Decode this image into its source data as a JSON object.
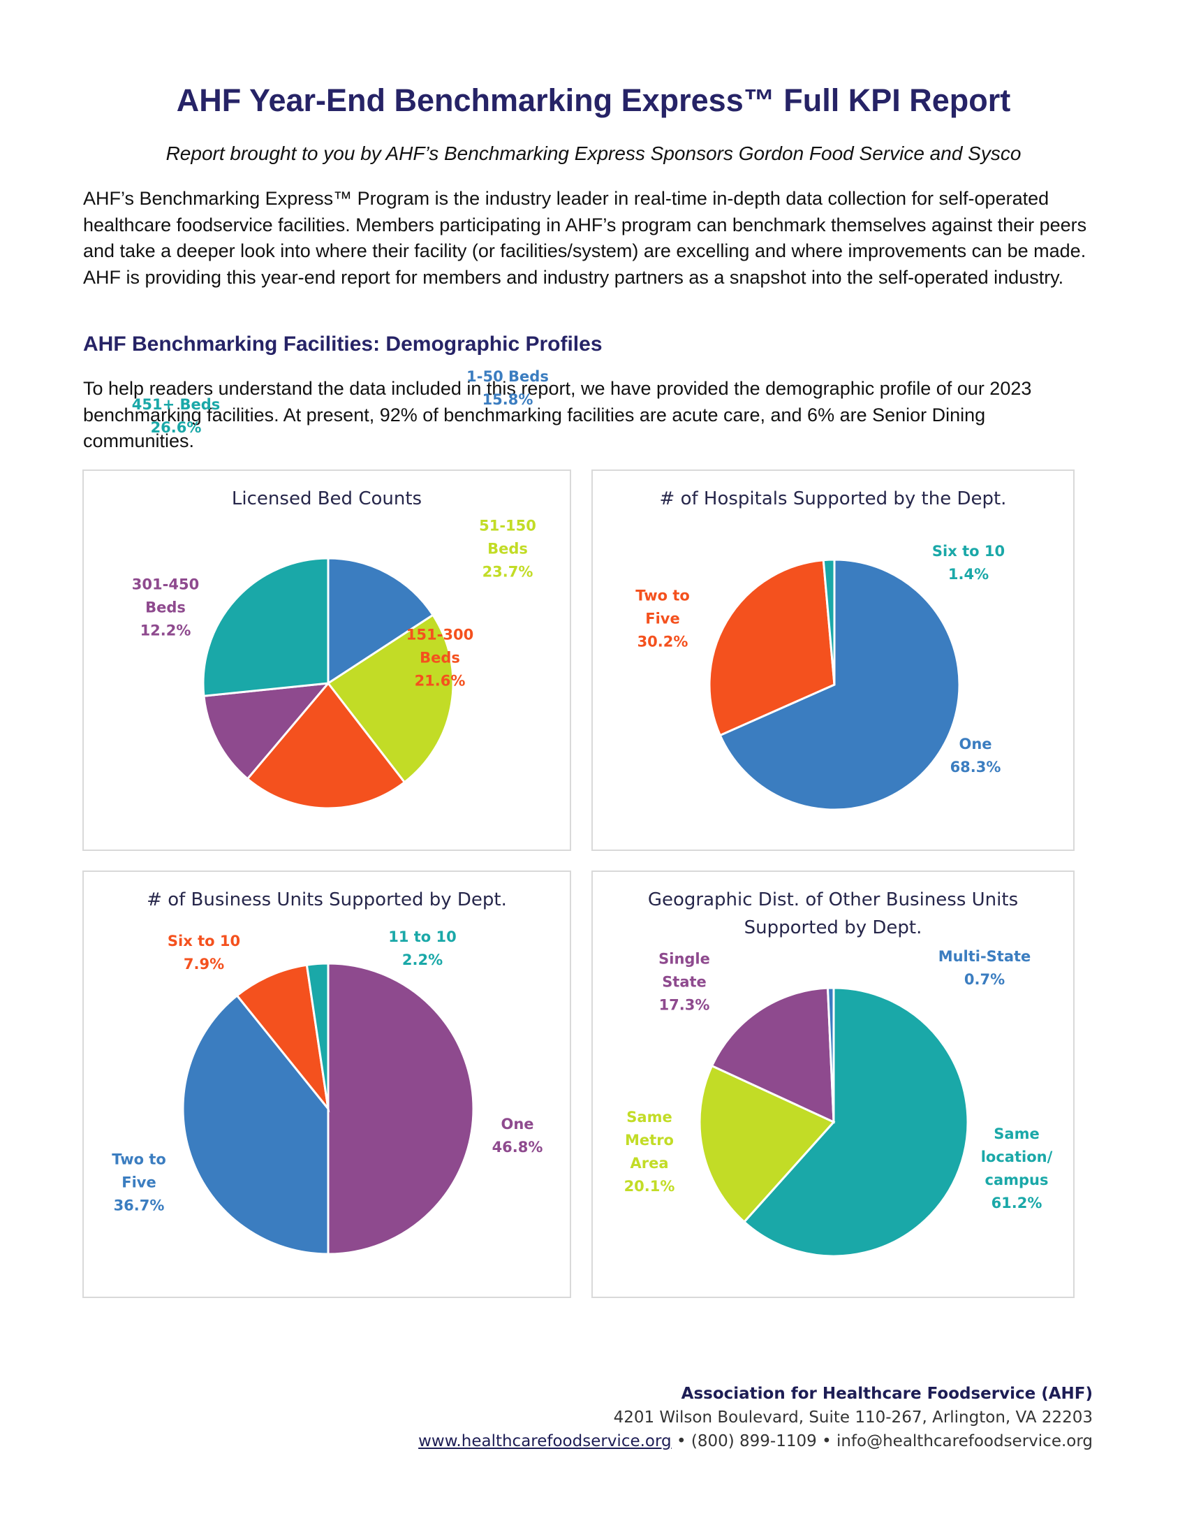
{
  "header": {
    "title": "AHF Year-End Benchmarking Express™ Full KPI Report",
    "subtitle": "Report brought to you by AHF’s Benchmarking Express Sponsors Gordon Food Service and Sysco"
  },
  "intro": "AHF’s Benchmarking Express™ Program is the industry leader in real-time in-depth data collection for self-operated healthcare foodservice facilities. Members participating in AHF’s program can benchmark themselves against their peers and take a deeper look into where their facility (or facilities/system) are excelling and where improvements can be made. AHF is providing this year-end report for members and industry partners as a snapshot into the self-operated industry.",
  "section": {
    "title": "AHF Benchmarking Facilities: Demographic Profiles",
    "text": "To help readers understand the data included in this report, we have provided the demographic profile of our 2023 benchmarking facilities. At present, 92% of benchmarking facilities are acute care, and 6% are Senior Dining communities."
  },
  "chart_data": [
    {
      "type": "pie",
      "title": "Licensed Bed Counts",
      "categories": [
        "1-50 Beds",
        "51-150 Beds",
        "151-300 Beds",
        "301-450 Beds",
        "451+ Beds"
      ],
      "values": [
        15.8,
        23.7,
        21.6,
        12.2,
        26.6
      ],
      "value_labels": [
        "15.8%",
        "23.7%",
        "21.6%",
        "12.2%",
        "26.6%"
      ],
      "colors": [
        "#3b7dc0",
        "#c2dc26",
        "#f4511e",
        "#8e4a8e",
        "#1aa8a8"
      ]
    },
    {
      "type": "pie",
      "title": "# of Hospitals Supported by the Dept.",
      "categories": [
        "One",
        "Two to Five",
        "Six to 10"
      ],
      "values": [
        68.3,
        30.2,
        1.4
      ],
      "value_labels": [
        "68.3%",
        "30.2%",
        "1.4%"
      ],
      "colors": [
        "#3b7dc0",
        "#f4511e",
        "#1aa8a8"
      ]
    },
    {
      "type": "pie",
      "title": "# of Business Units Supported by Dept.",
      "categories": [
        "One",
        "Two to Five",
        "Six to 10",
        "11 to 10"
      ],
      "values": [
        46.8,
        36.7,
        7.9,
        2.2
      ],
      "value_labels": [
        "46.8%",
        "36.7%",
        "7.9%",
        "2.2%"
      ],
      "colors": [
        "#8e4a8e",
        "#3b7dc0",
        "#f4511e",
        "#1aa8a8"
      ]
    },
    {
      "type": "pie",
      "title": "Geographic Dist. of Other Business Units Supported by Dept.",
      "categories": [
        "Same location/ campus",
        "Same Metro Area",
        "Single State",
        "Multi-State"
      ],
      "values": [
        61.2,
        20.1,
        17.3,
        0.7
      ],
      "value_labels": [
        "61.2%",
        "20.1%",
        "17.3%",
        "0.7%"
      ],
      "colors": [
        "#1aa8a8",
        "#c2dc26",
        "#8e4a8e",
        "#3b7dc0"
      ]
    }
  ],
  "footer": {
    "org": "Association for Healthcare Foodservice (AHF)",
    "address": "4201 Wilson Boulevard, Suite 110-267, Arlington, VA 22203",
    "website": "www.healthcarefoodservice.org",
    "separator": "•",
    "phone": "(800) 899-1109",
    "email": "info@healthcarefoodservice.org"
  }
}
